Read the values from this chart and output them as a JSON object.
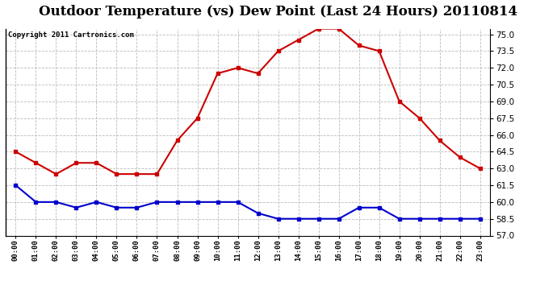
{
  "title": "Outdoor Temperature (vs) Dew Point (Last 24 Hours) 20110814",
  "copyright": "Copyright 2011 Cartronics.com",
  "hours": [
    "00:00",
    "01:00",
    "02:00",
    "03:00",
    "04:00",
    "05:00",
    "06:00",
    "07:00",
    "08:00",
    "09:00",
    "10:00",
    "11:00",
    "12:00",
    "13:00",
    "14:00",
    "15:00",
    "16:00",
    "17:00",
    "18:00",
    "19:00",
    "20:00",
    "21:00",
    "22:00",
    "23:00"
  ],
  "temp": [
    64.5,
    63.5,
    62.5,
    63.5,
    63.5,
    62.5,
    62.5,
    62.5,
    65.5,
    67.5,
    71.5,
    72.0,
    71.5,
    73.5,
    74.5,
    75.5,
    75.5,
    74.0,
    73.5,
    69.0,
    67.5,
    65.5,
    64.0,
    63.0
  ],
  "dew": [
    61.5,
    60.0,
    60.0,
    59.5,
    60.0,
    59.5,
    59.5,
    60.0,
    60.0,
    60.0,
    60.0,
    60.0,
    59.0,
    58.5,
    58.5,
    58.5,
    58.5,
    59.5,
    59.5,
    58.5,
    58.5,
    58.5,
    58.5,
    58.5
  ],
  "ylim": [
    57.0,
    75.5
  ],
  "yticks": [
    57.0,
    58.5,
    60.0,
    61.5,
    63.0,
    64.5,
    66.0,
    67.5,
    69.0,
    70.5,
    72.0,
    73.5,
    75.0
  ],
  "temp_color": "#cc0000",
  "dew_color": "#0000cc",
  "bg_color": "#ffffff",
  "plot_bg": "#ffffff",
  "grid_color": "#bbbbbb",
  "title_fontsize": 12,
  "copyright_fontsize": 6.5
}
